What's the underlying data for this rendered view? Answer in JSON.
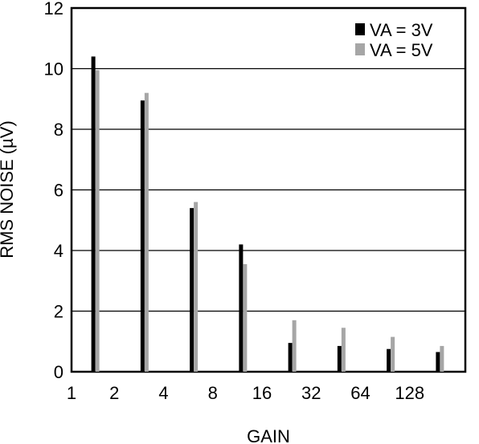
{
  "chart_data": {
    "type": "bar",
    "xlabel": "GAIN",
    "ylabel": "RMS NOISE (µV)",
    "ylim": [
      0,
      12
    ],
    "yticks": [
      "0",
      "2",
      "4",
      "6",
      "8",
      "10",
      "12"
    ],
    "categories": [
      "1",
      "2",
      "4",
      "8",
      "16",
      "32",
      "64",
      "128"
    ],
    "grid": true,
    "legend_position": "top-right",
    "series": [
      {
        "name": "VA = 3V",
        "color": "#000000",
        "values": [
          10.4,
          8.95,
          5.4,
          4.2,
          0.95,
          0.85,
          0.75,
          0.65
        ]
      },
      {
        "name": "VA = 5V",
        "color": "#a6a6a6",
        "values": [
          9.95,
          9.2,
          5.6,
          3.55,
          1.7,
          1.45,
          1.15,
          0.85
        ]
      }
    ]
  }
}
